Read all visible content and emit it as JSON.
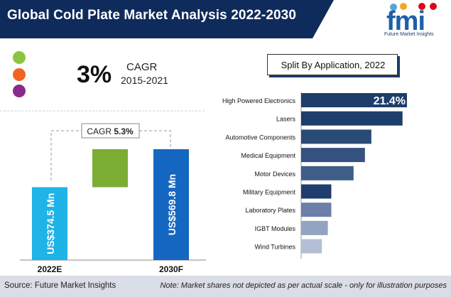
{
  "header": {
    "title": "Global Cold Plate Market Analysis 2022-2030",
    "band_color": "#0f2b5b"
  },
  "logo": {
    "letters": "fmi",
    "tagline": "Future Market Insights",
    "icon_names": [
      "shopping-cart-icon",
      "bulb-icon",
      "car-icon",
      "medicine-icon"
    ]
  },
  "legend_dots": [
    {
      "color": "#8bc53f"
    },
    {
      "color": "#f26322"
    },
    {
      "color": "#8b2a8e"
    }
  ],
  "cagr": {
    "value": "3%",
    "label": "CAGR",
    "period": "2015-2021"
  },
  "split": {
    "title": "Split By Application, 2022"
  },
  "chart_data": [
    {
      "type": "bar",
      "categories": [
        "2022E",
        "2030F"
      ],
      "values": [
        374.5,
        569.8
      ],
      "value_labels": [
        "US$374.5 Mn",
        "US$569.8 Mn"
      ],
      "increment_bar_color": "#7cad33",
      "bar_colors": [
        "#1fb4e8",
        "#1566c0"
      ],
      "annotation": {
        "label": "CAGR",
        "value": "5.3%"
      },
      "title": "",
      "xlabel": "",
      "ylabel": ""
    },
    {
      "type": "bar",
      "orientation": "horizontal",
      "categories": [
        "High Powered Electronics",
        "Lasers",
        "Automotive Components",
        "Medical Equipment",
        "Motor Devices",
        "Military Equipment",
        "Laboratory Plates",
        "IGBT Modules",
        "Wind Turbines"
      ],
      "values": [
        21.4,
        20.5,
        14.2,
        12.9,
        10.6,
        6.1,
        6.1,
        5.4,
        4.2
      ],
      "value_labels": [
        "21.4%",
        "",
        "",
        "",
        "",
        "",
        "",
        "",
        ""
      ],
      "bar_colors": [
        "#1d3d6b",
        "#1d3d6b",
        "#2a4a78",
        "#34527d",
        "#3e5d88",
        "#1f3d6e",
        "#6b7fa8",
        "#93a3c2",
        "#b4bfd5"
      ],
      "title": "",
      "xlabel": "",
      "ylabel": ""
    }
  ],
  "footer": {
    "source": "Source: Future Market Insights",
    "note": "Note: Market shares not depicted as per actual scale - only for illustration purposes"
  }
}
